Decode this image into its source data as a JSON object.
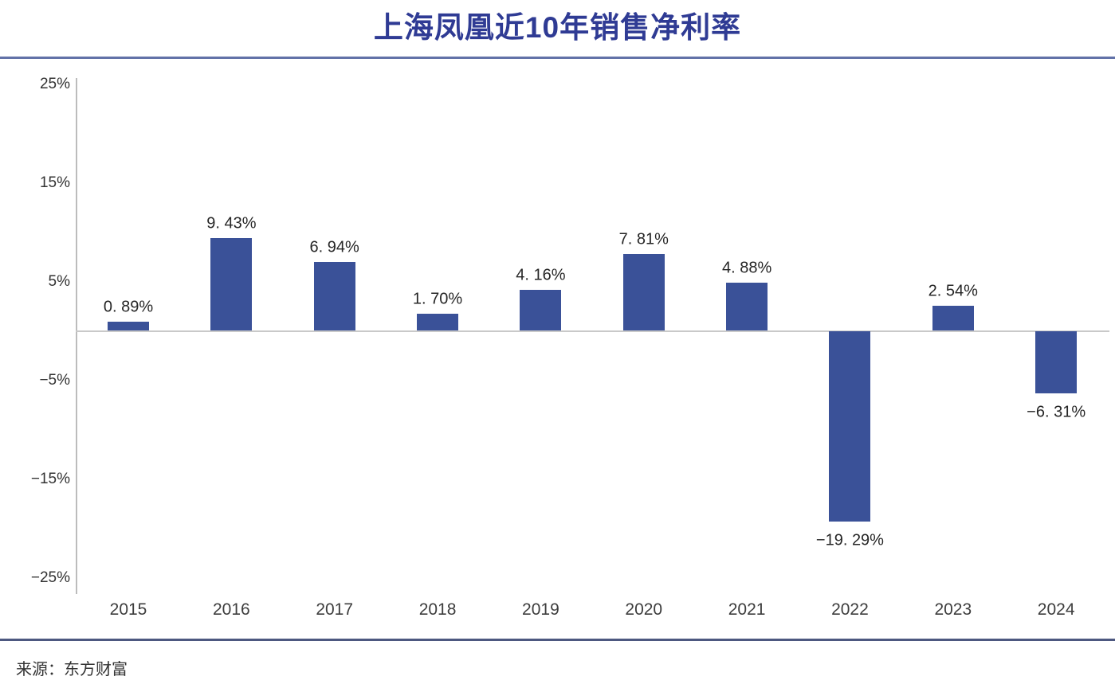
{
  "header": {
    "title": "上海凤凰近10年销售净利率"
  },
  "footer": {
    "source": "来源：东方财富"
  },
  "colors": {
    "bar": "#3a5198",
    "title": "#2f3b94",
    "divider_top": "#6272a8",
    "divider_bottom": "#4d5880",
    "axis_line": "#bcbcbc",
    "zero_line": "#c9c9c9",
    "value_label_text": "#262626",
    "tick_text": "#333333"
  },
  "chart_data": {
    "type": "bar",
    "title": "上海凤凰近10年销售净利率",
    "categories": [
      "2015",
      "2016",
      "2017",
      "2018",
      "2019",
      "2020",
      "2021",
      "2022",
      "2023",
      "2024"
    ],
    "values": [
      0.89,
      9.43,
      6.94,
      1.7,
      4.16,
      7.81,
      4.88,
      -19.29,
      2.54,
      -6.31
    ],
    "value_labels": [
      "0. 89%",
      "9. 43%",
      "6. 94%",
      "1. 70%",
      "4. 16%",
      "7. 81%",
      "4. 88%",
      "−19. 29%",
      "2. 54%",
      "−6. 31%"
    ],
    "xlabel": "",
    "ylabel": "",
    "ylim": [
      -25,
      25
    ],
    "yticks": [
      25,
      15,
      5,
      -5,
      -15,
      -25
    ],
    "ytick_labels": [
      "25%",
      "15%",
      "5%",
      "−5%",
      "−15%",
      "−25%"
    ],
    "grid": false,
    "legend": null,
    "source": "来源：东方财富"
  }
}
